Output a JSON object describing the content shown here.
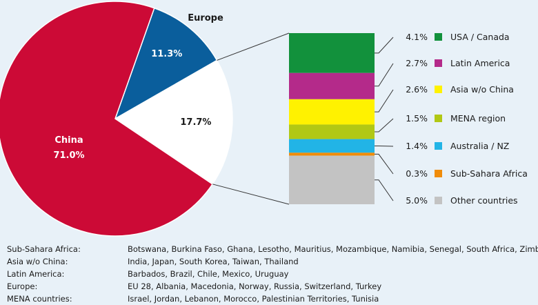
{
  "colors": {
    "background": "#e8f1f8",
    "china": "#cc0a36",
    "europe": "#0a5e9c",
    "other_segment": "#ffffff"
  },
  "chart_data": [
    {
      "type": "pie",
      "slices": [
        {
          "name": "China",
          "value": 71.0,
          "label": "71.0%",
          "color": "#cc0a36"
        },
        {
          "name": "Europe",
          "value": 11.3,
          "label": "11.3%",
          "color": "#0a5e9c"
        },
        {
          "name": "",
          "value": 17.7,
          "label": "17.7%",
          "color": "#ffffff"
        }
      ]
    },
    {
      "type": "bar",
      "stacked": true,
      "series": [
        {
          "name": "USA / Canada",
          "value": 4.1,
          "label": "4.1%",
          "color": "#12913c"
        },
        {
          "name": "Latin America",
          "value": 2.7,
          "label": "2.7%",
          "color": "#b42a8a"
        },
        {
          "name": "Asia w/o China",
          "value": 2.6,
          "label": "2.6%",
          "color": "#fff200"
        },
        {
          "name": "MENA region",
          "value": 1.5,
          "label": "1.5%",
          "color": "#b1c814"
        },
        {
          "name": "Australia / NZ",
          "value": 1.4,
          "label": "1.4%",
          "color": "#22b4e6"
        },
        {
          "name": "Sub-Sahara Africa",
          "value": 0.3,
          "label": "0.3%",
          "color": "#f08c0a"
        },
        {
          "name": "Other countries",
          "value": 5.0,
          "label": "5.0%",
          "color": "#c3c3c3"
        }
      ]
    }
  ],
  "notes": [
    {
      "label": "Sub-Sahara Africa:",
      "value": "Botswana, Burkina Faso, Ghana, Lesotho, Mauritius, Mozambique, Namibia, Senegal, South Africa, Zimbabwe"
    },
    {
      "label": "Asia w/o China:",
      "value": "India, Japan, South Korea, Taiwan, Thailand"
    },
    {
      "label": "Latin America:",
      "value": "Barbados, Brazil, Chile, Mexico, Uruguay"
    },
    {
      "label": "Europe:",
      "value": "EU 28, Albania, Macedonia, Norway, Russia, Switzerland, Turkey"
    },
    {
      "label": "MENA countries:",
      "value": "Israel, Jordan, Lebanon, Morocco, Palestinian Territories, Tunisia"
    }
  ]
}
